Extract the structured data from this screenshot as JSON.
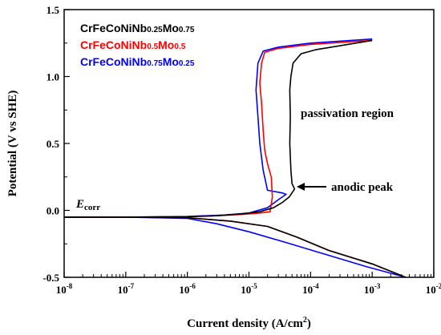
{
  "chart_data": {
    "type": "line",
    "xlabel": "Current density (A/cm",
    "xlabel_sup": "2",
    "xlabel_end": ")",
    "ylabel": "Potential (V vs SHE)",
    "xscale": "log",
    "xlim": [
      1e-08,
      0.01
    ],
    "ylim": [
      -0.5,
      1.5
    ],
    "x_ticks": [
      {
        "base": "10",
        "exp": "-8",
        "value": 1e-08
      },
      {
        "base": "10",
        "exp": "-7",
        "value": 1e-07
      },
      {
        "base": "10",
        "exp": "-6",
        "value": 1e-06
      },
      {
        "base": "10",
        "exp": "-5",
        "value": 1e-05
      },
      {
        "base": "10",
        "exp": "-4",
        "value": 0.0001
      },
      {
        "base": "10",
        "exp": "-3",
        "value": 0.001
      },
      {
        "base": "10",
        "exp": "-2",
        "value": 0.01
      }
    ],
    "y_ticks": [
      "-0.5",
      "0.0",
      "0.5",
      "1.0",
      "1.5"
    ],
    "y_tick_values": [
      -0.5,
      0.0,
      0.5,
      1.0,
      1.5
    ],
    "legend_position": "top-left",
    "series": [
      {
        "name": "CrFeCoNiNb0.25Mo0.75",
        "label_parts": [
          [
            "CrFeCoNiNb",
            false
          ],
          [
            "0.25",
            true
          ],
          [
            "Mo",
            false
          ],
          [
            "0.75",
            true
          ]
        ],
        "color": "#000000",
        "anodic": [
          [
            1e-08,
            -0.05
          ],
          [
            1e-07,
            -0.05
          ],
          [
            1e-06,
            -0.048
          ],
          [
            3e-06,
            -0.04
          ],
          [
            8e-06,
            -0.025
          ],
          [
            1.5e-05,
            -0.01
          ],
          [
            2.5e-05,
            0.02
          ],
          [
            3.5e-05,
            0.06
          ],
          [
            4.5e-05,
            0.1
          ],
          [
            5.5e-05,
            0.16
          ],
          [
            5e-05,
            0.2
          ],
          [
            4.8e-05,
            0.3
          ],
          [
            4.6e-05,
            0.5
          ],
          [
            4.7e-05,
            0.7
          ],
          [
            4.6e-05,
            0.9
          ],
          [
            4.8e-05,
            1.0
          ],
          [
            5.2e-05,
            1.1
          ],
          [
            7e-05,
            1.17
          ],
          [
            0.00012,
            1.2
          ],
          [
            0.0003,
            1.23
          ],
          [
            0.001,
            1.27
          ]
        ],
        "cathodic": [
          [
            1e-08,
            -0.05
          ],
          [
            1e-07,
            -0.05
          ],
          [
            1e-06,
            -0.055
          ],
          [
            5e-06,
            -0.08
          ],
          [
            2e-05,
            -0.12
          ],
          [
            6e-05,
            -0.2
          ],
          [
            0.0002,
            -0.3
          ],
          [
            0.001,
            -0.4
          ],
          [
            0.0035,
            -0.5
          ]
        ]
      },
      {
        "name": "CrFeCoNiNb0.5Mo0.5",
        "label_parts": [
          [
            "CrFeCoNiNb",
            false
          ],
          [
            "0.5",
            true
          ],
          [
            "Mo",
            false
          ],
          [
            "0.5",
            true
          ]
        ],
        "color": "#ff0000",
        "anodic": [
          [
            1e-08,
            -0.05
          ],
          [
            1e-07,
            -0.05
          ],
          [
            1e-06,
            -0.047
          ],
          [
            3e-06,
            -0.04
          ],
          [
            8e-06,
            -0.03
          ],
          [
            1.5e-05,
            -0.02
          ],
          [
            2.2e-05,
            -0.01
          ],
          [
            2.4e-05,
            0.1
          ],
          [
            2.3e-05,
            0.25
          ],
          [
            2e-05,
            0.35
          ],
          [
            1.8e-05,
            0.45
          ],
          [
            1.7e-05,
            0.6
          ],
          [
            1.6e-05,
            0.8
          ],
          [
            1.5e-05,
            0.95
          ],
          [
            1.6e-05,
            1.1
          ],
          [
            1.8e-05,
            1.18
          ],
          [
            3e-05,
            1.21
          ],
          [
            0.0001,
            1.24
          ],
          [
            0.001,
            1.27
          ]
        ],
        "cathodic": [
          [
            1e-08,
            -0.05
          ],
          [
            1e-07,
            -0.05
          ],
          [
            1e-06,
            -0.055
          ],
          [
            5e-06,
            -0.08
          ],
          [
            2e-05,
            -0.12
          ],
          [
            6e-05,
            -0.2
          ],
          [
            0.0002,
            -0.3
          ],
          [
            0.001,
            -0.4
          ],
          [
            0.0035,
            -0.5
          ]
        ]
      },
      {
        "name": "CrFeCoNiNb0.75Mo0.25",
        "label_parts": [
          [
            "CrFeCoNiNb",
            false
          ],
          [
            "0.75",
            true
          ],
          [
            "Mo",
            false
          ],
          [
            "0.25",
            true
          ]
        ],
        "color": "#0000ff",
        "anodic": [
          [
            1e-08,
            -0.05
          ],
          [
            1e-07,
            -0.05
          ],
          [
            1e-06,
            -0.045
          ],
          [
            4e-06,
            -0.035
          ],
          [
            1e-05,
            -0.02
          ],
          [
            2e-05,
            0.02
          ],
          [
            3e-05,
            0.08
          ],
          [
            4e-05,
            0.12
          ],
          [
            3.5e-05,
            0.13
          ],
          [
            2e-05,
            0.15
          ],
          [
            1.7e-05,
            0.3
          ],
          [
            1.5e-05,
            0.5
          ],
          [
            1.4e-05,
            0.7
          ],
          [
            1.3e-05,
            0.9
          ],
          [
            1.4e-05,
            1.1
          ],
          [
            1.7e-05,
            1.19
          ],
          [
            3e-05,
            1.22
          ],
          [
            0.0001,
            1.25
          ],
          [
            0.001,
            1.28
          ]
        ],
        "cathodic": [
          [
            1e-08,
            -0.05
          ],
          [
            1e-07,
            -0.05
          ],
          [
            1e-06,
            -0.06
          ],
          [
            3e-06,
            -0.1
          ],
          [
            1e-05,
            -0.16
          ],
          [
            4e-05,
            -0.24
          ],
          [
            0.00015,
            -0.32
          ],
          [
            0.0008,
            -0.42
          ],
          [
            0.0035,
            -0.5
          ]
        ]
      }
    ],
    "annotations": {
      "ecorr_main": "E",
      "ecorr_sub": "corr",
      "passivation": "passivation region",
      "anodic_peak": "anodic peak"
    }
  }
}
